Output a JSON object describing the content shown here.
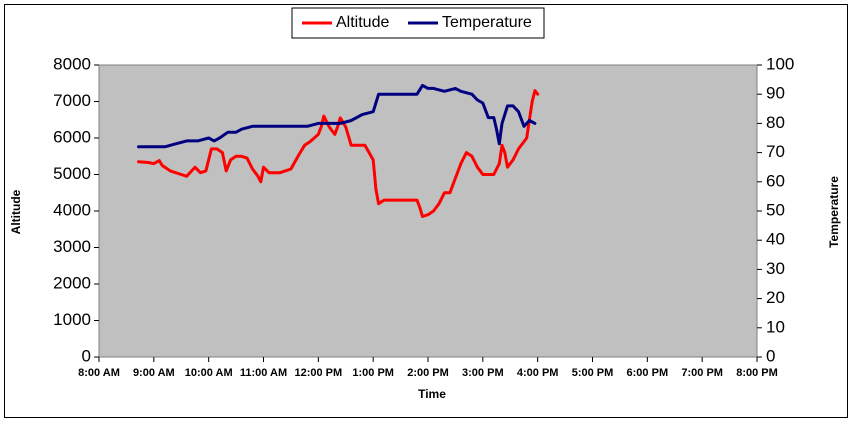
{
  "chart_data": {
    "type": "line",
    "title": "",
    "xlabel": "Time",
    "ylabel_left": "Altitude",
    "ylabel_right": "Temperature",
    "x_ticks": [
      "8:00 AM",
      "9:00 AM",
      "10:00 AM",
      "11:00 AM",
      "12:00 PM",
      "1:00 PM",
      "2:00 PM",
      "3:00 PM",
      "4:00 PM",
      "5:00 PM",
      "6:00 PM",
      "7:00 PM",
      "8:00 PM"
    ],
    "xlim_hours": [
      8,
      20
    ],
    "ylim_left": [
      0,
      8000
    ],
    "ylim_right": [
      0,
      100
    ],
    "y_ticks_left": [
      "0",
      "1000",
      "2000",
      "3000",
      "4000",
      "5000",
      "6000",
      "7000",
      "8000"
    ],
    "y_ticks_right": [
      "0",
      "10",
      "20",
      "30",
      "40",
      "50",
      "60",
      "70",
      "80",
      "90",
      "100"
    ],
    "legend_position": "top-center",
    "grid": false,
    "plot_background": "#c0c0c0",
    "series": [
      {
        "name": "Altitude",
        "axis": "left",
        "color": "#ff0000",
        "points": [
          [
            8.72,
            5350
          ],
          [
            8.9,
            5330
          ],
          [
            9.0,
            5300
          ],
          [
            9.1,
            5380
          ],
          [
            9.15,
            5250
          ],
          [
            9.3,
            5100
          ],
          [
            9.5,
            5000
          ],
          [
            9.6,
            4950
          ],
          [
            9.75,
            5200
          ],
          [
            9.85,
            5050
          ],
          [
            9.95,
            5100
          ],
          [
            10.05,
            5700
          ],
          [
            10.15,
            5700
          ],
          [
            10.25,
            5600
          ],
          [
            10.32,
            5100
          ],
          [
            10.4,
            5400
          ],
          [
            10.5,
            5500
          ],
          [
            10.6,
            5500
          ],
          [
            10.7,
            5450
          ],
          [
            10.8,
            5150
          ],
          [
            10.9,
            4950
          ],
          [
            10.95,
            4800
          ],
          [
            11.0,
            5200
          ],
          [
            11.1,
            5050
          ],
          [
            11.3,
            5050
          ],
          [
            11.5,
            5150
          ],
          [
            11.65,
            5550
          ],
          [
            11.75,
            5800
          ],
          [
            11.85,
            5900
          ],
          [
            12.0,
            6100
          ],
          [
            12.05,
            6300
          ],
          [
            12.1,
            6600
          ],
          [
            12.2,
            6300
          ],
          [
            12.3,
            6100
          ],
          [
            12.35,
            6300
          ],
          [
            12.4,
            6550
          ],
          [
            12.5,
            6300
          ],
          [
            12.6,
            5800
          ],
          [
            12.7,
            5800
          ],
          [
            12.85,
            5800
          ],
          [
            13.0,
            5400
          ],
          [
            13.05,
            4600
          ],
          [
            13.1,
            4200
          ],
          [
            13.2,
            4300
          ],
          [
            13.5,
            4300
          ],
          [
            13.8,
            4300
          ],
          [
            13.85,
            4100
          ],
          [
            13.9,
            3850
          ],
          [
            14.0,
            3900
          ],
          [
            14.1,
            4000
          ],
          [
            14.2,
            4200
          ],
          [
            14.3,
            4500
          ],
          [
            14.4,
            4500
          ],
          [
            14.5,
            4900
          ],
          [
            14.6,
            5300
          ],
          [
            14.7,
            5600
          ],
          [
            14.8,
            5500
          ],
          [
            14.9,
            5200
          ],
          [
            15.0,
            5000
          ],
          [
            15.2,
            5000
          ],
          [
            15.3,
            5300
          ],
          [
            15.35,
            5800
          ],
          [
            15.4,
            5600
          ],
          [
            15.45,
            5200
          ],
          [
            15.55,
            5400
          ],
          [
            15.65,
            5700
          ],
          [
            15.8,
            6000
          ],
          [
            15.85,
            6500
          ],
          [
            15.9,
            7000
          ],
          [
            15.95,
            7300
          ],
          [
            16.0,
            7200
          ]
        ]
      },
      {
        "name": "Temperature",
        "axis": "right",
        "color": "#000080",
        "points": [
          [
            8.72,
            72
          ],
          [
            9.0,
            72
          ],
          [
            9.2,
            72
          ],
          [
            9.4,
            73
          ],
          [
            9.6,
            74
          ],
          [
            9.8,
            74
          ],
          [
            10.0,
            75
          ],
          [
            10.1,
            74
          ],
          [
            10.2,
            75
          ],
          [
            10.35,
            77
          ],
          [
            10.5,
            77
          ],
          [
            10.6,
            78
          ],
          [
            10.8,
            79
          ],
          [
            11.0,
            79
          ],
          [
            11.2,
            79
          ],
          [
            11.4,
            79
          ],
          [
            11.6,
            79
          ],
          [
            11.8,
            79
          ],
          [
            12.0,
            80
          ],
          [
            12.2,
            80
          ],
          [
            12.4,
            80
          ],
          [
            12.6,
            81
          ],
          [
            12.8,
            83
          ],
          [
            13.0,
            84
          ],
          [
            13.1,
            90
          ],
          [
            13.3,
            90
          ],
          [
            13.5,
            90
          ],
          [
            13.8,
            90
          ],
          [
            13.9,
            93
          ],
          [
            14.0,
            92
          ],
          [
            14.1,
            92
          ],
          [
            14.3,
            91
          ],
          [
            14.5,
            92
          ],
          [
            14.6,
            91
          ],
          [
            14.8,
            90
          ],
          [
            14.9,
            88
          ],
          [
            15.0,
            87
          ],
          [
            15.1,
            82
          ],
          [
            15.2,
            82
          ],
          [
            15.25,
            78
          ],
          [
            15.3,
            73
          ],
          [
            15.35,
            80
          ],
          [
            15.45,
            86
          ],
          [
            15.55,
            86
          ],
          [
            15.65,
            84
          ],
          [
            15.75,
            79
          ],
          [
            15.85,
            81
          ],
          [
            15.95,
            80
          ]
        ]
      }
    ]
  }
}
